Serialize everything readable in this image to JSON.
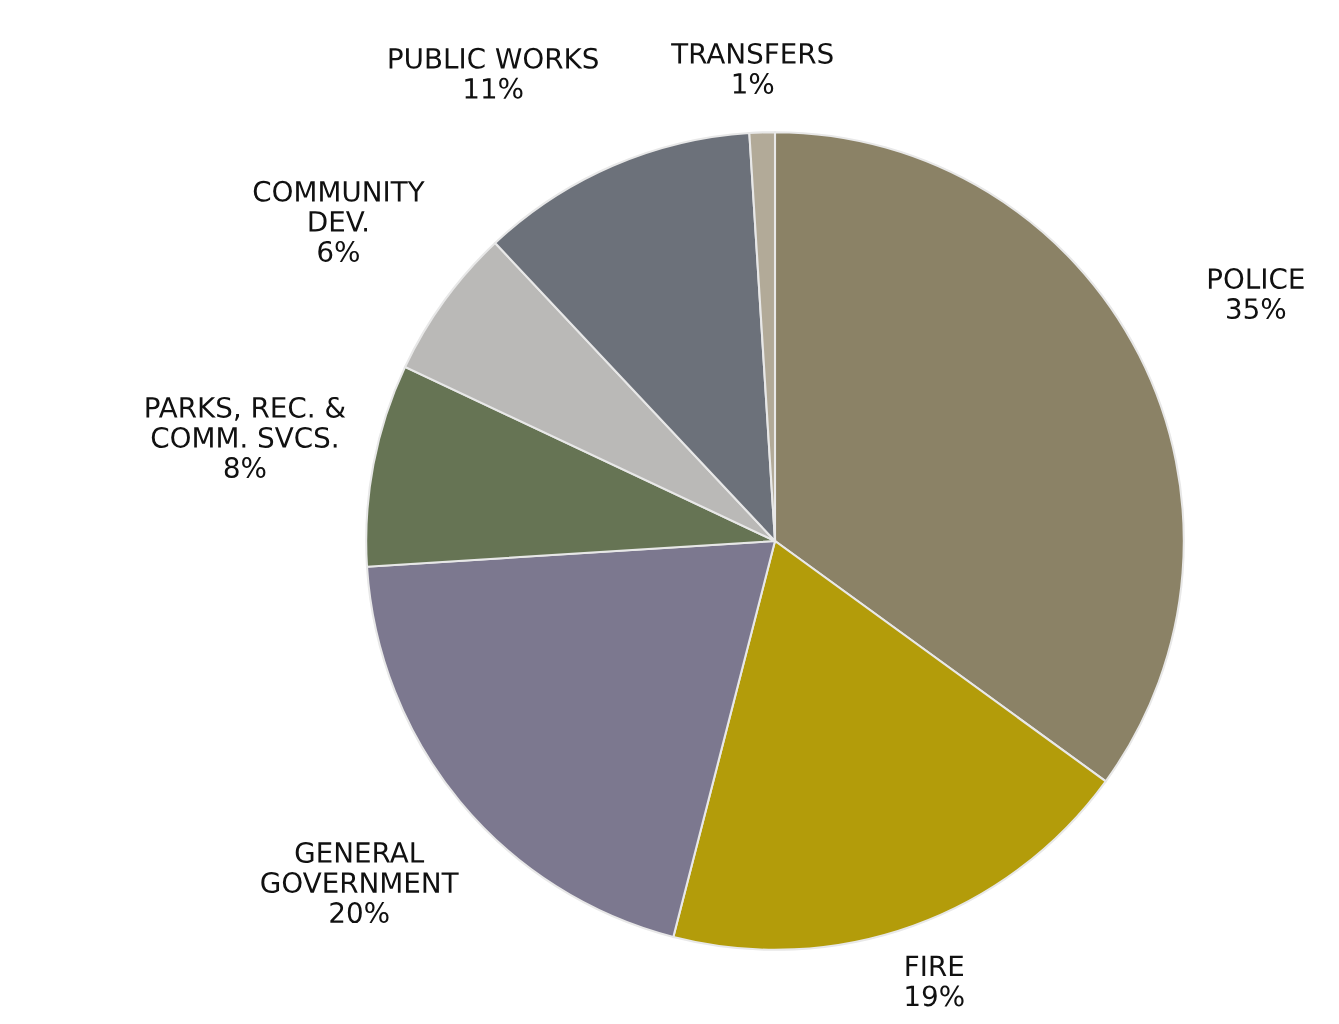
{
  "chart_data": {
    "type": "pie",
    "categories": [
      "POLICE",
      "FIRE",
      "GENERAL\nGOVERNMENT",
      "PARKS, REC. &\nCOMM. SVCS.",
      "COMMUNITY\nDEV.",
      "PUBLIC WORKS",
      "TRANSFERS"
    ],
    "values": [
      35,
      19,
      20,
      8,
      6,
      11,
      1
    ],
    "colors": [
      "#8b8266",
      "#b39c0a",
      "#7c788f",
      "#667454",
      "#bab9b7",
      "#6c717a",
      "#b2aa98"
    ],
    "value_labels": [
      "35%",
      "19%",
      "20%",
      "8%",
      "6%",
      "11%",
      "1%"
    ]
  }
}
